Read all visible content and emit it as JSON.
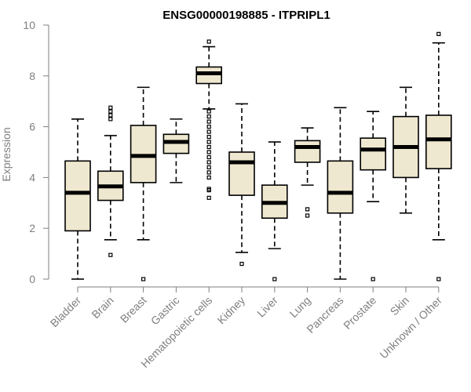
{
  "chart_data": {
    "type": "box",
    "title": "ENSG00000198885 - ITPRIPL1",
    "ylabel": "Expression",
    "ylim": [
      0,
      10
    ],
    "yticks": [
      0,
      2,
      4,
      6,
      8,
      10
    ],
    "colors": {
      "box_fill": "#efe8d0",
      "axis": "#7f7f7f"
    },
    "categories": [
      "Bladder",
      "Brain",
      "Breast",
      "Gastric",
      "Hematopoietic cells",
      "Kidney",
      "Liver",
      "Lung",
      "Pancreas",
      "Prostate",
      "Skin",
      "Unknown / Other"
    ],
    "boxes": [
      {
        "min": 0.0,
        "q1": 1.9,
        "median": 3.4,
        "q3": 4.65,
        "max": 6.3,
        "outliers": []
      },
      {
        "min": 1.55,
        "q1": 3.1,
        "median": 3.65,
        "q3": 4.25,
        "max": 5.65,
        "outliers": [
          0.95,
          6.3,
          6.45,
          6.6,
          6.75
        ]
      },
      {
        "min": 1.55,
        "q1": 3.8,
        "median": 4.85,
        "q3": 6.05,
        "max": 7.55,
        "outliers": [
          0.0
        ]
      },
      {
        "min": 3.8,
        "q1": 4.95,
        "median": 5.4,
        "q3": 5.7,
        "max": 6.3,
        "outliers": []
      },
      {
        "min": 6.7,
        "q1": 7.7,
        "median": 8.1,
        "q3": 8.35,
        "max": 9.15,
        "outliers": [
          9.35,
          3.2,
          3.5,
          3.55,
          4.0,
          4.2,
          4.4,
          4.6,
          4.8,
          5.0,
          5.2,
          5.4,
          5.6,
          5.8,
          6.0,
          6.2,
          6.4,
          6.6
        ]
      },
      {
        "min": 1.05,
        "q1": 3.3,
        "median": 4.6,
        "q3": 5.0,
        "max": 6.9,
        "outliers": [
          0.6
        ]
      },
      {
        "min": 1.2,
        "q1": 2.4,
        "median": 3.0,
        "q3": 3.7,
        "max": 5.4,
        "outliers": [
          0.0
        ]
      },
      {
        "min": 3.7,
        "q1": 4.6,
        "median": 5.2,
        "q3": 5.45,
        "max": 5.95,
        "outliers": [
          2.5,
          2.75
        ]
      },
      {
        "min": 0.0,
        "q1": 2.6,
        "median": 3.4,
        "q3": 4.65,
        "max": 6.75,
        "outliers": []
      },
      {
        "min": 3.05,
        "q1": 4.3,
        "median": 5.1,
        "q3": 5.55,
        "max": 6.6,
        "outliers": [
          0.0
        ]
      },
      {
        "min": 2.6,
        "q1": 4.0,
        "median": 5.2,
        "q3": 6.4,
        "max": 7.55,
        "outliers": []
      },
      {
        "min": 1.55,
        "q1": 4.35,
        "median": 5.5,
        "q3": 6.45,
        "max": 9.3,
        "outliers": [
          9.65,
          0.0
        ]
      }
    ]
  }
}
